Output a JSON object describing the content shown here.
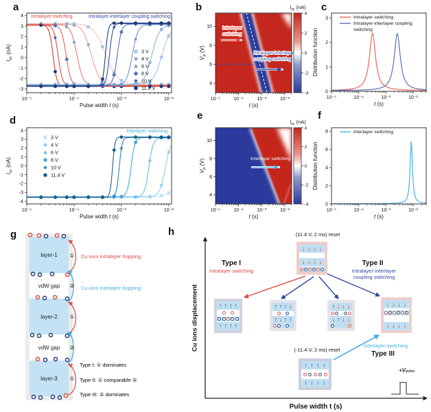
{
  "panels": {
    "a": "a",
    "b": "b",
    "c": "c",
    "d": "d",
    "e": "e",
    "f": "f",
    "g": "g",
    "h": "h"
  },
  "chart_data": [
    {
      "id": "a",
      "type": "line",
      "xscale": "log",
      "xlim": [
        1e-05,
        0.0115
      ],
      "ylim": [
        -3.35,
        4.25
      ],
      "xticks": [
        1e-05,
        0.0001,
        0.001,
        0.01
      ],
      "yticks": [
        -3,
        -2,
        -1,
        0,
        1,
        2,
        3,
        4
      ],
      "xlabel_parts": [
        [
          "Pulse width ",
          ""
        ],
        [
          "t",
          "i"
        ],
        [
          " (s)",
          ""
        ]
      ],
      "ylabel_parts": [
        [
          "I",
          "i"
        ],
        [
          "sc",
          "sub"
        ],
        [
          " (nA)",
          ""
        ]
      ],
      "annotations": [
        {
          "text": "Intralayer switching",
          "color": "#e2453b",
          "x": 1.25e-05,
          "y": 3.8,
          "anchor": "start"
        },
        {
          "text": "Intralayer-interlayer coupling switching",
          "color": "#2f4a9f",
          "x": 0.0108,
          "y": 3.8,
          "anchor": "end"
        }
      ],
      "legend": {
        "labels": [
          "3 V",
          "4 V",
          "6 V",
          "8 V",
          "10 V",
          "11.4 V"
        ],
        "markers": [
          "square",
          "circle",
          "triangle",
          "diamond",
          "star",
          "hexagon"
        ],
        "colors": [
          "#a9c7e6",
          "#8cb0d9",
          "#6d92c8",
          "#4f6fb5",
          "#33509f",
          "#1b3a78"
        ]
      },
      "series": [
        {
          "label": "3 V fall",
          "color": "#f5c1bb",
          "marker": "square",
          "marker_color": "#a9c7e6",
          "t50": 0.00046,
          "s": 0.125,
          "y_from": 3.25,
          "y_to": -2.55
        },
        {
          "label": "4 V fall",
          "color": "#efa09a",
          "marker": "circle",
          "marker_color": "#8cb0d9",
          "t50": 0.00023,
          "s": 0.09,
          "y_from": 3.2,
          "y_to": -2.6
        },
        {
          "label": "6 V fall",
          "color": "#e87b70",
          "marker": "triangle",
          "marker_color": "#6d92c8",
          "t50": 0.000115,
          "s": 0.065,
          "y_from": 3.15,
          "y_to": -2.65
        },
        {
          "label": "8 V fall",
          "color": "#e26055",
          "marker": "diamond",
          "marker_color": "#4f6fb5",
          "t50": 6.8e-05,
          "s": 0.05,
          "y_from": 3.1,
          "y_to": -2.7
        },
        {
          "label": "10 V fall",
          "color": "#dc4b41",
          "marker": "star",
          "marker_color": "#33509f",
          "t50": 4.6e-05,
          "s": 0.045,
          "y_from": 3.1,
          "y_to": -2.7
        },
        {
          "label": "11.4 V fall",
          "color": "#d6382d",
          "marker": "hexagon",
          "marker_color": "#1b3a78",
          "t50": 3.6e-05,
          "s": 0.04,
          "y_from": 3.1,
          "y_to": -2.75
        },
        {
          "label": "3 V rise",
          "color": "#a9c7e6",
          "marker": "square",
          "marker_color": "#a9c7e6",
          "t50": 0.0072,
          "s": 0.09,
          "y_from": -2.55,
          "y_to": 3.0
        },
        {
          "label": "4 V rise",
          "color": "#8cb0d9",
          "marker": "circle",
          "marker_color": "#8cb0d9",
          "t50": 0.0044,
          "s": 0.08,
          "y_from": -2.6,
          "y_to": 3.1
        },
        {
          "label": "6 V rise",
          "color": "#6d92c8",
          "marker": "triangle",
          "marker_color": "#6d92c8",
          "t50": 0.0017,
          "s": 0.06,
          "y_from": -2.65,
          "y_to": 3.15
        },
        {
          "label": "8 V rise",
          "color": "#4f6fb5",
          "marker": "diamond",
          "marker_color": "#4f6fb5",
          "t50": 0.00082,
          "s": 0.045,
          "y_from": -2.7,
          "y_to": 3.2
        },
        {
          "label": "10 V rise",
          "color": "#33509f",
          "marker": "star",
          "marker_color": "#33509f",
          "t50": 0.00056,
          "s": 0.035,
          "y_from": -2.7,
          "y_to": 3.25
        },
        {
          "label": "11.4 V rise",
          "color": "#1b3a78",
          "marker": "hexagon",
          "marker_color": "#1b3a78",
          "t50": 0.00046,
          "s": 0.03,
          "y_from": -2.75,
          "y_to": 3.3
        }
      ]
    },
    {
      "id": "b",
      "type": "heatmap",
      "xlim": [
        1e-05,
        0.02
      ],
      "ylim": [
        3,
        11.4
      ],
      "xticks": [
        1e-05,
        0.0001,
        0.001,
        0.01
      ],
      "yticks": [
        4,
        6,
        8,
        10
      ],
      "xlabel_parts": [
        [
          "t",
          "i"
        ],
        [
          " (s)",
          ""
        ]
      ],
      "ylabel_parts": [
        [
          "V",
          "i"
        ],
        [
          "p",
          "sub"
        ],
        [
          " (V)",
          ""
        ]
      ],
      "base_color": "#c4271d",
      "band_color": "#2b3a9c",
      "band": {
        "t_top": 0.00022,
        "t_bot": 0.0017,
        "halfwidth_dec": 0.2
      },
      "corner": {
        "t_start": 0.007
      },
      "hline": {
        "v": 6,
        "t_to": 0.00042,
        "color": "#2f4a9f"
      },
      "annotations": [
        {
          "lines": [
            "Intralayer",
            "switching"
          ],
          "color": "#e8443a",
          "x": 2e-05,
          "y": 9.7,
          "anchor": "start",
          "outline": true
        },
        {
          "lines": [
            "Intralayer-interlayer",
            "coupling switching"
          ],
          "color": "#2f4a9f",
          "x": 0.00045,
          "y": 7.05,
          "anchor": "start",
          "outline": true
        }
      ],
      "arrows": [
        {
          "x1": 1.7e-05,
          "x2": 0.000115,
          "v": 8.55,
          "color": "#e8443a",
          "casing": true
        },
        {
          "x1": 0.00055,
          "x2": 0.007,
          "v": 5.45,
          "color": "#2f4a9f",
          "casing": true
        }
      ],
      "colorbar": {
        "label_parts": [
          [
            "I",
            "i"
          ],
          [
            "sc",
            "sub"
          ],
          [
            " (nA)",
            ""
          ]
        ],
        "ticks": [
          4,
          2,
          0,
          -2,
          -4
        ],
        "vmin": -4,
        "vmax": 4
      }
    },
    {
      "id": "c",
      "type": "dist",
      "xlim": [
        1e-05,
        0.03
      ],
      "ylim": [
        0,
        3.2
      ],
      "xticks": [
        1e-05,
        0.0001,
        0.001,
        0.01
      ],
      "yticks": [
        0,
        1,
        2,
        3
      ],
      "xlabel_parts": [
        [
          "t",
          "i"
        ],
        [
          " (s)",
          ""
        ]
      ],
      "ylabel_parts": [
        [
          "Distribution function",
          ""
        ]
      ],
      "series": [
        {
          "label_lines": [
            "Intralayer switching"
          ],
          "color": "#e8645a",
          "center": 0.00032,
          "height": 2.35,
          "gamma": 0.135
        },
        {
          "label_lines": [
            "Intralayer-interlayer coupling",
            "switching"
          ],
          "color": "#5a6fb5",
          "center": 0.0026,
          "height": 2.33,
          "gamma": 0.135
        }
      ]
    },
    {
      "id": "d",
      "type": "line",
      "xscale": "log",
      "xlim": [
        1e-05,
        0.0115
      ],
      "ylim": [
        -4.3,
        4.3
      ],
      "xticks": [
        1e-05,
        0.0001,
        0.001,
        0.01
      ],
      "yticks": [
        -4,
        -3,
        -2,
        -1,
        0,
        1,
        2,
        3,
        4
      ],
      "xlabel_parts": [
        [
          "Pulse width ",
          ""
        ],
        [
          "t",
          "i"
        ],
        [
          " (s)",
          ""
        ]
      ],
      "ylabel_parts": [
        [
          "I",
          "i"
        ],
        [
          "sc",
          "sub"
        ],
        [
          " (nA)",
          ""
        ]
      ],
      "annotations": [
        {
          "text": "Interlayer switching",
          "color": "#3eafe5",
          "x": 0.0095,
          "y": 3.75,
          "anchor": "end"
        }
      ],
      "legend": {
        "labels": [
          "3 V",
          "4 V",
          "6 V",
          "8 V",
          "10 V",
          "11.4 V"
        ],
        "markers": [
          "square",
          "circle",
          "triangle",
          "diamond",
          "star",
          "hexagon"
        ],
        "colors": [
          "#c3e3f6",
          "#97d0ef",
          "#66b9e8",
          "#41a3dd",
          "#2380b8",
          "#175f8c"
        ]
      },
      "series": [
        {
          "label": "3 V rise",
          "color": "#c3e3f6",
          "marker": "square",
          "marker_color": "#c3e3f6",
          "t50": 0.024,
          "s": 0.15,
          "y_from": -3.55,
          "y_to": 3.0
        },
        {
          "label": "4 V rise",
          "color": "#97d0ef",
          "marker": "circle",
          "marker_color": "#97d0ef",
          "t50": 0.0085,
          "s": 0.06,
          "y_from": -3.5,
          "y_to": 3.1
        },
        {
          "label": "6 V rise",
          "color": "#66b9e8",
          "marker": "triangle",
          "marker_color": "#66b9e8",
          "t50": 0.0038,
          "s": 0.045,
          "y_from": -3.5,
          "y_to": 3.15
        },
        {
          "label": "8 V rise",
          "color": "#41a3dd",
          "marker": "diamond",
          "marker_color": "#41a3dd",
          "t50": 0.0016,
          "s": 0.04,
          "y_from": -3.5,
          "y_to": 3.2
        },
        {
          "label": "10 V rise",
          "color": "#2380b8",
          "marker": "star",
          "marker_color": "#2380b8",
          "t50": 0.0009,
          "s": 0.03,
          "y_from": -3.55,
          "y_to": 3.2
        },
        {
          "label": "11.4 V rise",
          "color": "#175f8c",
          "marker": "hexagon",
          "marker_color": "#175f8c",
          "t50": 0.00065,
          "s": 0.025,
          "y_from": -3.55,
          "y_to": 3.25
        }
      ]
    },
    {
      "id": "e",
      "type": "heatmap",
      "xlim": [
        1e-05,
        0.02
      ],
      "ylim": [
        3,
        11.4
      ],
      "xticks": [
        1e-05,
        0.0001,
        0.001,
        0.01
      ],
      "yticks": [
        4,
        6,
        8,
        10
      ],
      "xlabel_parts": [
        [
          "t",
          "i"
        ],
        [
          " (s)",
          ""
        ]
      ],
      "ylabel_parts": [
        [
          "V",
          "i"
        ],
        [
          "p",
          "sub"
        ],
        [
          " (V)",
          ""
        ]
      ],
      "base_color": "#2b3a9c",
      "band_color": "#c4271d",
      "region": {
        "t_top": 0.00035,
        "t_bot": 0.0065,
        "corner_t": 0.0045,
        "corner_v": 7.7
      },
      "annotations": [
        {
          "lines": [
            "Interlayer switching"
          ],
          "color": "#ffffff",
          "x": 0.00033,
          "y": 7.85,
          "anchor": "start"
        }
      ],
      "arrows": [
        {
          "x1": 0.00035,
          "x2": 0.005,
          "v": 7.05,
          "color": "#3eafe5",
          "casing": true
        }
      ],
      "colorbar": {
        "label_parts": [
          [
            "I",
            "i"
          ],
          [
            "sc",
            "sub"
          ],
          [
            " (nA)",
            ""
          ]
        ],
        "ticks": [
          4,
          2,
          0,
          -2,
          -4
        ],
        "vmin": -4,
        "vmax": 4
      }
    },
    {
      "id": "f",
      "type": "dist",
      "xlim": [
        1e-05,
        0.03
      ],
      "ylim": [
        0,
        8.4
      ],
      "xticks": [
        1e-05,
        0.0001,
        0.001,
        0.01
      ],
      "yticks": [
        0,
        2,
        4,
        6,
        8
      ],
      "xlabel_parts": [
        [
          "t",
          "i"
        ],
        [
          " (s)",
          ""
        ]
      ],
      "ylabel_parts": [
        [
          "Distribution function",
          ""
        ]
      ],
      "series": [
        {
          "label_lines": [
            "Interlayer switching"
          ],
          "color": "#45b3e7",
          "center": 0.0085,
          "height": 7.0,
          "gamma": 0.05
        }
      ]
    }
  ],
  "panel_g": {
    "n1": "①",
    "n2": "②",
    "layer1": "layer-1",
    "layer2": "layer-2",
    "layer3": "layer-3",
    "vdw": "vdW gap",
    "cu_intra": "Cu ions intralayer hopping",
    "cu_inter": "Cu ions interlayer hopping",
    "type1": "Type I: ① dominates",
    "type2": "Type II: ① comparable ②",
    "type3": "Type III: ② dominates",
    "intra_color": "#e2453b",
    "inter_color": "#3eafe5"
  },
  "panel_h": {
    "ylabel": "Cu ions displacement",
    "xlabel": "Pulse width t (s)",
    "reset_top": "(11.4 V, 2 ms) reset",
    "reset_bottom": "(-11.4 V, 2 ms) reset",
    "type1": "Type I",
    "type1_sub": "Intralayer switching",
    "type2": "Type II",
    "type2_sub1": "Intralayer-interlayer",
    "type2_sub2": "coupling switching",
    "type3": "Type III",
    "type3_sub": "Interlayer switching",
    "pulse_v": "+V",
    "pulse_sub": "pulse",
    "colors": {
      "red": "#e2453b",
      "navy": "#2f4a9f",
      "cyan": "#3eafe5"
    },
    "boxes": [
      {
        "id": "reset_top",
        "rows": [
          {
            "t": "arrows",
            "dirs": "dddd"
          },
          {
            "t": "gap"
          },
          {
            "t": "arrows",
            "dirs": "dddd"
          },
          {
            "t": "ions",
            "seq": "rbrbrb",
            "bg": "b"
          }
        ]
      },
      {
        "id": "left",
        "rows": [
          {
            "t": "arrows",
            "dirs": "uuuu"
          },
          {
            "t": "ions",
            "seq": ".r.r.",
            "bg": "w"
          },
          {
            "t": "ions",
            "seq": "bbrbb",
            "bg": "b"
          },
          {
            "t": "arrows",
            "dirs": "uuuu"
          }
        ]
      },
      {
        "id": "mid1",
        "rows": [
          {
            "t": "arrows",
            "dirs": "uuud"
          },
          {
            "t": "ions",
            "seq": ".r.b.",
            "bg": "w"
          },
          {
            "t": "arrows",
            "dirs": "uduu"
          },
          {
            "t": "ions",
            "seq": "rb.b.",
            "bg": "b"
          }
        ]
      },
      {
        "id": "mid2",
        "rows": [
          {
            "t": "arrows",
            "dirs": "uddd"
          },
          {
            "t": "ions",
            "seq": "rb.br",
            "bg": "w"
          },
          {
            "t": "arrows",
            "dirs": "dudd"
          },
          {
            "t": "ions",
            "seq": "b...r",
            "bg": "b"
          }
        ]
      },
      {
        "id": "right",
        "rows": [
          {
            "t": "arrows",
            "dirs": "dddd"
          },
          {
            "t": "ions",
            "seq": "rbrbrb",
            "bg": "b"
          },
          {
            "t": "gap"
          },
          {
            "t": "arrows",
            "dirs": "dddd"
          }
        ]
      },
      {
        "id": "reset_bottom",
        "rows": [
          {
            "t": "arrows",
            "dirs": "uuuu"
          },
          {
            "t": "ions",
            "seq": "rbrbr",
            "bg": "w"
          },
          {
            "t": "arrows",
            "dirs": "uuuu"
          }
        ]
      }
    ]
  }
}
